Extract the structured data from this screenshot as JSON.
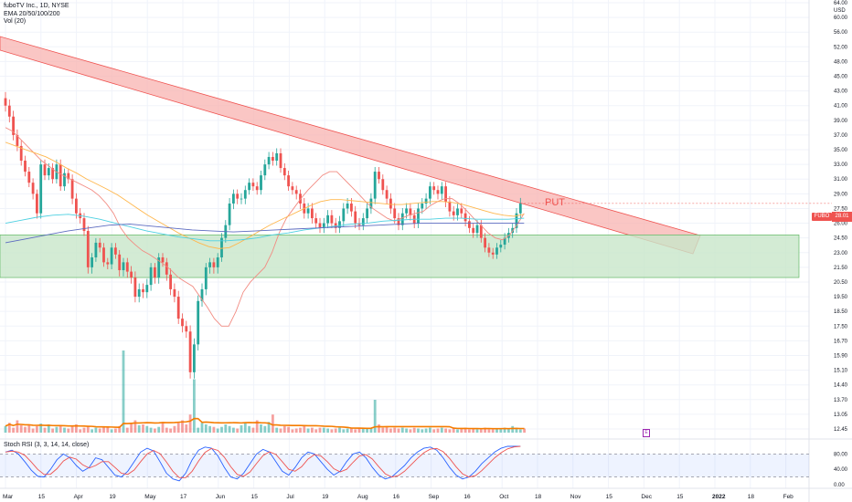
{
  "chart_data": {
    "type": "candlestick",
    "title": "fuboTV Inc., 1D, NYSE",
    "indicators": [
      "EMA 20/50/100/200",
      "Vol (20)"
    ],
    "currency": "USD",
    "ticker_badge": "FUBO",
    "last_price": "28.01",
    "annotation": "PUT",
    "earnings_marker": "E",
    "x_tick_labels": [
      "Mar",
      "15",
      "Apr",
      "19",
      "May",
      "17",
      "Jun",
      "15",
      "Jul",
      "19",
      "Aug",
      "16",
      "Sep",
      "16",
      "Oct",
      "18",
      "Nov",
      "15",
      "Dec",
      "15",
      "2022",
      "18",
      "Feb"
    ],
    "y_tick_labels": [
      "64.00",
      "60.00",
      "56.00",
      "52.00",
      "48.00",
      "45.00",
      "43.00",
      "41.00",
      "39.00",
      "37.00",
      "35.00",
      "33.00",
      "31.00",
      "29.00",
      "27.50",
      "26.00",
      "24.50",
      "23.00",
      "21.50",
      "20.50",
      "19.50",
      "18.50",
      "17.50",
      "16.70",
      "15.90",
      "15.10",
      "14.40",
      "13.70",
      "13.05",
      "12.45"
    ],
    "candles_close": [
      41.0,
      39.5,
      37.0,
      35.5,
      33.5,
      32.0,
      30.5,
      29.0,
      27.0,
      33.0,
      31.5,
      32.5,
      31.0,
      33.0,
      30.0,
      31.8,
      31.0,
      28.5,
      27.0,
      26.5,
      25.2,
      21.5,
      22.5,
      24.0,
      23.5,
      22.0,
      21.8,
      23.5,
      22.8,
      21.3,
      22.0,
      21.2,
      20.8,
      19.5,
      20.0,
      19.8,
      20.3,
      21.5,
      20.8,
      22.5,
      22.0,
      21.0,
      20.0,
      19.5,
      18.0,
      17.5,
      17.2,
      15.0,
      16.5,
      19.2,
      20.0,
      21.5,
      22.0,
      21.5,
      22.5,
      24.5,
      25.8,
      28.0,
      29.0,
      28.5,
      28.5,
      29.5,
      30.5,
      30.0,
      29.5,
      31.5,
      33.0,
      34.0,
      33.5,
      34.5,
      32.5,
      31.5,
      30.0,
      29.5,
      29.0,
      28.0,
      27.0,
      27.5,
      26.5,
      26.0,
      25.5,
      26.0,
      26.8,
      26.0,
      25.5,
      26.2,
      27.5,
      28.0,
      27.2,
      26.0,
      25.8,
      26.5,
      27.5,
      28.5,
      32.0,
      31.0,
      29.5,
      28.5,
      27.5,
      26.5,
      25.8,
      27.0,
      27.5,
      26.8,
      26.0,
      27.5,
      28.0,
      28.5,
      30.0,
      29.5,
      29.0,
      30.0,
      28.2,
      27.2,
      26.8,
      27.5,
      27.0,
      26.2,
      25.5,
      25.0,
      25.8,
      24.5,
      23.5,
      23.0,
      22.8,
      23.5,
      23.8,
      24.5,
      25.0,
      25.5,
      27.0,
      28.01
    ],
    "ema_fast": [
      38.0,
      37.5,
      36.5,
      35.5,
      34.5,
      33.5,
      32.8,
      32.0,
      31.5,
      31.0,
      30.5,
      30.0,
      29.5,
      28.8,
      28.0,
      27.0,
      25.5,
      24.5,
      23.8,
      23.2,
      22.8,
      22.3,
      21.8,
      21.3,
      20.8,
      20.5,
      20.2,
      19.5,
      18.8,
      18.0,
      17.5,
      17.5,
      18.5,
      19.8,
      20.5,
      21.0,
      21.5,
      23.0,
      25.0,
      26.5,
      27.5,
      28.5,
      29.5,
      30.5,
      31.5,
      32.0,
      32.0,
      31.0,
      30.0,
      29.0,
      28.2,
      27.5,
      27.0,
      26.5,
      26.2,
      26.5,
      26.8,
      27.0,
      27.2,
      27.8,
      28.2,
      28.5,
      28.5,
      28.0,
      27.3,
      26.5,
      25.8,
      25.0,
      24.5,
      24.3,
      24.8,
      25.8,
      27.0
    ],
    "ema_mid": [
      36.0,
      35.5,
      35.0,
      34.5,
      34.0,
      33.3,
      32.5,
      31.8,
      31.0,
      30.3,
      29.6,
      28.9,
      28.2,
      27.5,
      26.8,
      26.2,
      25.6,
      25.0,
      24.5,
      24.0,
      23.6,
      23.4,
      23.5,
      24.0,
      24.6,
      25.2,
      25.8,
      26.3,
      26.8,
      27.3,
      27.8,
      28.2,
      28.4,
      28.4,
      28.3,
      28.2,
      28.1,
      28.0,
      27.9,
      27.9,
      28.0,
      28.1,
      28.2,
      28.2,
      28.1,
      27.9,
      27.6,
      27.3,
      27.0,
      26.8,
      26.7,
      26.9
    ],
    "ema_slow": [
      26.0,
      26.3,
      26.6,
      26.8,
      26.9,
      26.7,
      26.4,
      26.0,
      25.6,
      25.2,
      24.9,
      24.6,
      24.4,
      24.2,
      24.2,
      24.3,
      24.5,
      24.8,
      25.0,
      25.3,
      25.5,
      25.7,
      25.9,
      26.0,
      26.2,
      26.3,
      26.4,
      26.4,
      26.5,
      26.5,
      26.4,
      26.4,
      26.4,
      26.5
    ],
    "ema_200": [
      24.0,
      24.4,
      24.8,
      25.2,
      25.5,
      25.8,
      25.9,
      25.7,
      25.5,
      25.3,
      25.2,
      25.1,
      25.2,
      25.3,
      25.4,
      25.5,
      25.6,
      25.7,
      25.8,
      25.9,
      26.0,
      26.0,
      26.0,
      26.0,
      26.0,
      26.0
    ],
    "volume_relative": [
      0.08,
      0.12,
      0.06,
      0.15,
      0.09,
      0.07,
      0.1,
      0.05,
      0.08,
      0.11,
      0.06,
      0.1,
      0.05,
      0.07,
      0.09,
      0.06,
      0.05,
      0.08,
      0.1,
      0.04,
      0.06,
      0.08,
      0.04,
      0.06,
      0.05,
      0.07,
      0.07,
      0.04,
      0.05,
      0.08,
      1.0,
      0.06,
      0.12,
      0.15,
      0.09,
      0.1,
      0.08,
      0.06,
      0.05,
      0.07,
      0.13,
      0.06,
      0.05,
      0.08,
      0.12,
      0.15,
      0.1,
      0.22,
      0.65,
      0.06,
      0.12,
      0.1,
      0.08,
      0.07,
      0.05,
      0.07,
      0.1,
      0.08,
      0.06,
      0.05,
      0.09,
      0.12,
      0.08,
      0.06,
      0.15,
      0.1,
      0.08,
      0.13,
      0.22,
      0.06,
      0.05,
      0.08,
      0.07,
      0.04,
      0.05,
      0.06,
      0.08,
      0.05,
      0.06,
      0.04,
      0.06,
      0.06,
      0.05,
      0.04,
      0.05,
      0.06,
      0.04,
      0.05,
      0.06,
      0.04,
      0.06,
      0.05,
      0.05,
      0.06,
      0.4,
      0.1,
      0.06,
      0.07,
      0.05,
      0.06,
      0.05,
      0.06,
      0.05,
      0.04,
      0.06,
      0.05,
      0.04,
      0.05,
      0.06,
      0.04,
      0.05,
      0.06,
      0.05,
      0.04,
      0.05,
      0.04,
      0.05,
      0.06,
      0.04,
      0.05,
      0.04,
      0.05,
      0.06,
      0.04,
      0.05,
      0.04,
      0.05,
      0.06,
      0.05,
      0.08,
      0.06,
      0.04,
      0.05
    ],
    "stoch_rsi": {
      "label": "Stoch RSI (3, 3, 14, 14, close)",
      "levels": [
        80,
        20
      ],
      "y_tick_labels": [
        "80.00",
        "40.00",
        "0.00"
      ],
      "k": [
        85,
        90,
        80,
        60,
        38,
        22,
        20,
        40,
        65,
        80,
        70,
        50,
        35,
        45,
        70,
        65,
        45,
        25,
        20,
        35,
        60,
        85,
        95,
        88,
        60,
        30,
        15,
        10,
        30,
        65,
        90,
        98,
        95,
        75,
        45,
        20,
        15,
        30,
        55,
        80,
        92,
        85,
        60,
        35,
        25,
        45,
        70,
        85,
        80,
        60,
        40,
        25,
        35,
        60,
        80,
        85,
        70,
        45,
        25,
        15,
        20,
        35,
        50,
        70,
        85,
        95,
        98,
        90,
        70,
        45,
        25,
        15,
        20,
        35,
        55,
        70,
        85,
        95,
        100,
        100,
        100
      ]
    },
    "zones": [
      {
        "kind": "downtrend-channel",
        "color": "#f8b3b0",
        "border": "#ef5350"
      },
      {
        "kind": "support-zone",
        "range": [
          20.8,
          24.8
        ],
        "color": "#c8e6c9",
        "border": "#4caf50"
      }
    ],
    "colors": {
      "up": "#26a69a",
      "down": "#ef5350",
      "ema_fast": "#f28b82",
      "ema_mid": "#ffb74d",
      "ema_slow": "#4dd0e1",
      "ema_200": "#5c6bc0",
      "vol_ma": "#f57c00",
      "k": "#2962ff",
      "d": "#ef5350"
    }
  }
}
